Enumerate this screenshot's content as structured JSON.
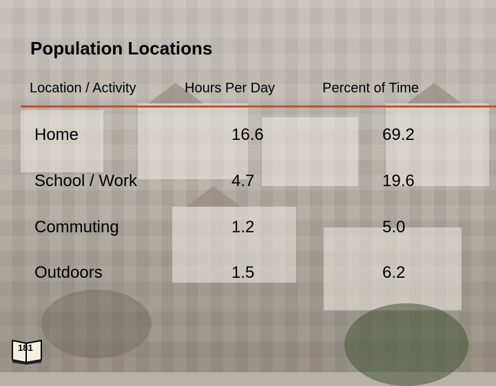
{
  "title": "Population Locations",
  "columns": [
    "Location / Activity",
    "Hours Per Day",
    "Percent of Time"
  ],
  "rows": [
    {
      "location": "Home",
      "hours": "16.6",
      "percent": "69.2"
    },
    {
      "location": "School / Work",
      "hours": "4.7",
      "percent": "19.6"
    },
    {
      "location": "Commuting",
      "hours": "1.2",
      "percent": "5.0"
    },
    {
      "location": "Outdoors",
      "hours": "1.5",
      "percent": "6.2"
    }
  ],
  "page_number": "181",
  "colors": {
    "rule": "#c8502a",
    "text": "#000000"
  },
  "icons": {
    "page_badge": "book-icon"
  }
}
